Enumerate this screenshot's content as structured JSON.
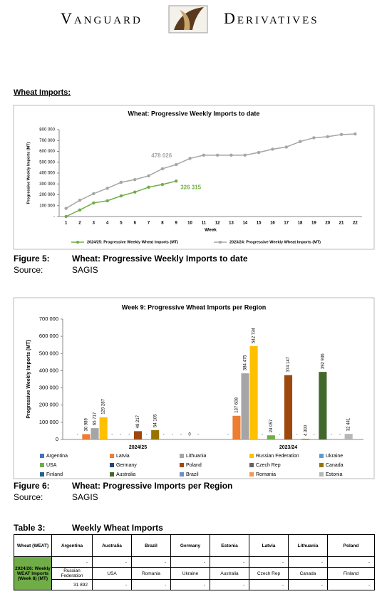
{
  "header": {
    "left": "Vanguard",
    "right": "Derivatives"
  },
  "section_title": "Wheat Imports:",
  "chart_data": [
    {
      "type": "line",
      "title": "Wheat: Progressive Weekly Imports to date",
      "xlabel": "Week",
      "ylabel": "Progressive Weekly Imports (MT)",
      "categories": [
        "1",
        "2",
        "3",
        "4",
        "5",
        "6",
        "7",
        "8",
        "9",
        "10",
        "11",
        "12",
        "13",
        "14",
        "15",
        "16",
        "17",
        "18",
        "19",
        "20",
        "21",
        "22"
      ],
      "series": [
        {
          "name": "2024/25: Progressive Weekly Wheat Imports (MT)",
          "color": "#70ad47",
          "values": [
            0,
            60000,
            125000,
            145000,
            190000,
            225000,
            270000,
            295000,
            326315,
            null,
            null,
            null,
            null,
            null,
            null,
            null,
            null,
            null,
            null,
            null,
            null,
            null
          ],
          "value_labels": [
            null,
            null,
            null,
            null,
            null,
            null,
            null,
            null,
            "326 315",
            null,
            null,
            null,
            null,
            null,
            null,
            null,
            null,
            null,
            null,
            null,
            null,
            null
          ]
        },
        {
          "name": "2023/24: Progressive Weekly Wheat Imports (MT)",
          "color": "#a5a5a5",
          "values": [
            75000,
            150000,
            210000,
            260000,
            315000,
            340000,
            375000,
            440000,
            478026,
            535000,
            565000,
            565000,
            565000,
            565000,
            590000,
            620000,
            640000,
            690000,
            725000,
            735000,
            755000,
            760000
          ],
          "value_labels": [
            null,
            null,
            null,
            null,
            null,
            null,
            null,
            null,
            "478 026",
            null,
            null,
            null,
            null,
            null,
            null,
            null,
            null,
            null,
            null,
            null,
            null,
            null
          ]
        }
      ],
      "ylim": [
        0,
        800000
      ],
      "yticks": [
        {
          "value": 0,
          "label": "-"
        },
        {
          "value": 100000,
          "label": "100 000"
        },
        {
          "value": 200000,
          "label": "200 000"
        },
        {
          "value": 300000,
          "label": "300 000"
        },
        {
          "value": 400000,
          "label": "400 000"
        },
        {
          "value": 500000,
          "label": "500 000"
        },
        {
          "value": 600000,
          "label": "600 000"
        },
        {
          "value": 700000,
          "label": "700 000"
        },
        {
          "value": 800000,
          "label": "800 000"
        }
      ],
      "grid": false
    },
    {
      "type": "bar",
      "title": "Week 9: Progressive Wheat Imports per Region",
      "ylabel": "Progressive Weekly Imports (MT)",
      "categories": [
        "2024/25",
        "2023/24"
      ],
      "series": [
        {
          "name": "Argentina",
          "color": "#4472c4",
          "values": [
            0,
            0
          ],
          "value_labels": [
            "-",
            "-"
          ]
        },
        {
          "name": "Latvia",
          "color": "#ed7d31",
          "values": [
            30989,
            137608
          ],
          "value_labels": [
            "30 989",
            "137 608"
          ]
        },
        {
          "name": "Lithuania",
          "color": "#a5a5a5",
          "values": [
            65717,
            384475
          ],
          "value_labels": [
            "65 717",
            "384 475"
          ]
        },
        {
          "name": "Russian Federation",
          "color": "#ffc000",
          "values": [
            129287,
            542734
          ],
          "value_labels": [
            "129 287",
            "542 734"
          ]
        },
        {
          "name": "Ukraine",
          "color": "#5b9bd5",
          "values": [
            0,
            0
          ],
          "value_labels": [
            "-",
            "-"
          ]
        },
        {
          "name": "USA",
          "color": "#70ad47",
          "values": [
            0,
            24057
          ],
          "value_labels": [
            "-",
            "24 057"
          ]
        },
        {
          "name": "Germany",
          "color": "#264478",
          "values": [
            0,
            0
          ],
          "value_labels": [
            "-",
            "-"
          ]
        },
        {
          "name": "Poland",
          "color": "#9e480e",
          "values": [
            48217,
            374147
          ],
          "value_labels": [
            "48 217",
            "374 147"
          ]
        },
        {
          "name": "Czech Rep",
          "color": "#636363",
          "values": [
            0,
            0
          ],
          "value_labels": [
            "-",
            "-"
          ]
        },
        {
          "name": "Canada",
          "color": "#997300",
          "values": [
            54105,
            4300
          ],
          "value_labels": [
            "54 105",
            "4 300"
          ]
        },
        {
          "name": "Finland",
          "color": "#255e91",
          "values": [
            0,
            0
          ],
          "value_labels": [
            "-",
            "-"
          ]
        },
        {
          "name": "Australia",
          "color": "#43682b",
          "values": [
            0,
            392936
          ],
          "value_labels": [
            "-",
            "392 936"
          ]
        },
        {
          "name": "Brazil",
          "color": "#698ed0",
          "values": [
            0,
            0
          ],
          "value_labels": [
            "-",
            "-"
          ]
        },
        {
          "name": "Romania",
          "color": "#f1975a",
          "values": [
            0,
            0
          ],
          "value_labels": [
            "0",
            "-"
          ]
        },
        {
          "name": "Estonia",
          "color": "#b7b7b7",
          "values": [
            0,
            32441
          ],
          "value_labels": [
            "-",
            "32 441"
          ]
        }
      ],
      "ylim": [
        0,
        700000
      ],
      "yticks": [
        0,
        {
          "value": 100000,
          "label": "100 000"
        },
        {
          "value": 200000,
          "label": "200 000"
        },
        {
          "value": 300000,
          "label": "300 000"
        },
        {
          "value": 400000,
          "label": "400 000"
        },
        {
          "value": 500000,
          "label": "500 000"
        },
        {
          "value": 600000,
          "label": "600 000"
        },
        {
          "value": 700000,
          "label": "700 000"
        }
      ],
      "grid": false
    }
  ],
  "figures": [
    {
      "label": "Figure 5:",
      "title": "Wheat: Progressive Weekly Imports to date",
      "source_label": "Source:",
      "source": "SAGIS"
    },
    {
      "label": "Figure 6:",
      "title": "Wheat: Progressive Imports per Region",
      "source_label": "Source:",
      "source": "SAGIS"
    }
  ],
  "table": {
    "label": "Table 3:",
    "title": "Weekly Wheat Imports",
    "corner": "Wheat (WEAT)",
    "row_header": "2024/26: Weekly WEAT Imports (Week 8) (MT)",
    "rows": [
      [
        "Argentina",
        "Australia",
        "Brazil",
        "Germany",
        "Estonia",
        "Latvia",
        "Lithuania",
        "Poland"
      ],
      [
        "-",
        "-",
        "-",
        "-",
        "-",
        "-",
        "-",
        "-"
      ],
      [
        "Russian Federation",
        "USA",
        "Romania",
        "Ukraine",
        "Australia",
        "Czech Rep",
        "Canada",
        "Finland"
      ],
      [
        "31 892",
        "-",
        "-",
        "-",
        "-",
        "-",
        "-",
        "-"
      ]
    ]
  }
}
